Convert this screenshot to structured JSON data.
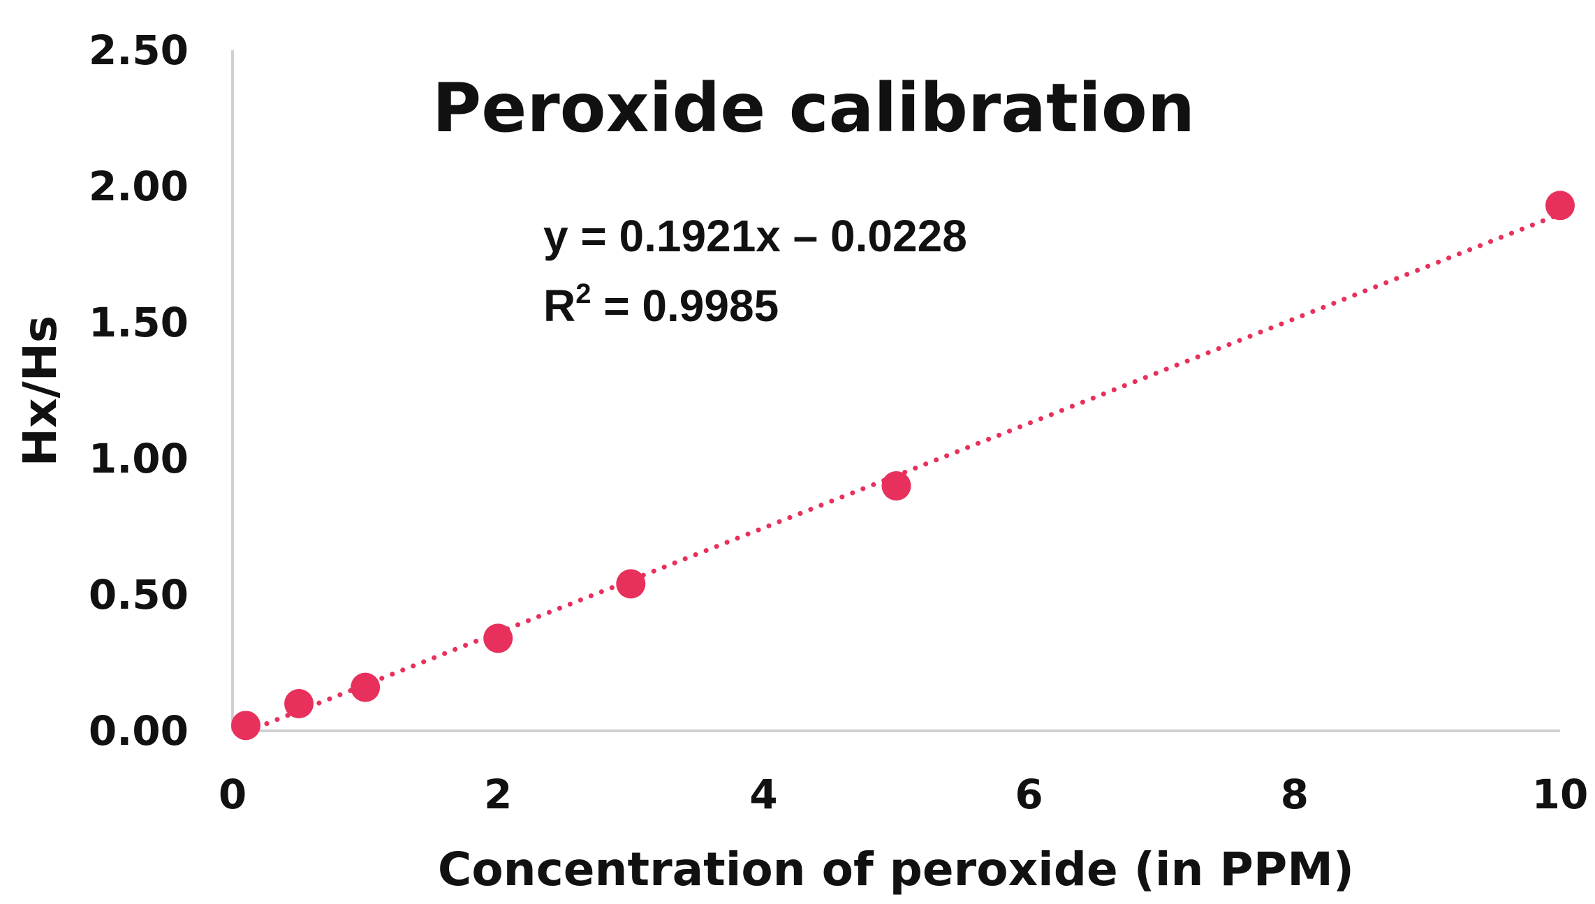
{
  "chart_data": {
    "type": "scatter",
    "title": "Peroxide calibration",
    "xlabel": "Concentration of peroxide (in PPM)",
    "ylabel": "Hx/Hs",
    "xlim": [
      0,
      10
    ],
    "ylim": [
      0,
      2.5
    ],
    "x_ticks": [
      "0",
      "2",
      "4",
      "6",
      "8",
      "10"
    ],
    "y_ticks": [
      "0.00",
      "0.50",
      "1.00",
      "1.50",
      "2.00",
      "2.50"
    ],
    "grid": false,
    "legend": "none",
    "series": [
      {
        "x": [
          0.1,
          0.5,
          1,
          2,
          3,
          5,
          10
        ],
        "y": [
          0.02,
          0.1,
          0.16,
          0.34,
          0.54,
          0.9,
          1.93
        ],
        "color": "#e8305c"
      }
    ],
    "trendline": {
      "style": "dotted",
      "color": "#e8305c",
      "slope": 0.1921,
      "intercept": -0.0228,
      "x_range": [
        0.1,
        10
      ]
    },
    "annotations": {
      "equation": "y = 0.1921x – 0.0228",
      "r2_prefix": "R",
      "r2_exponent": "2",
      "r2_value": " = 0.9985"
    },
    "colors": {
      "marker": "#e8305c",
      "axis": "#d0d0d0",
      "text": "#111111"
    }
  }
}
